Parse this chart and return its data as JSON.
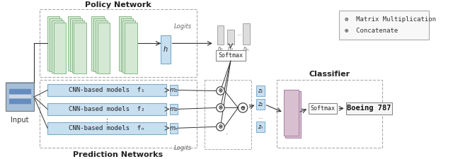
{
  "bg_color": "#ffffff",
  "policy_network_label": "Policy Network",
  "prediction_networks_label": "Prediction Networks",
  "classifier_label": "Classifier",
  "input_label": "Input",
  "logits_label_top": "Logits",
  "logits_label_bottom": "Logits",
  "softmax_label": "Softmax",
  "softmax2_label": "Softmax",
  "boeing_label": "Boeing 787",
  "cnn_labels": [
    "CNN-based models  f₁",
    "CNN-based models  f₂",
    "CNN-based models  fₙ"
  ],
  "dots_label": "⋮",
  "h_label": "h",
  "m_labels": [
    "m₁",
    "m₂",
    "mₙ"
  ],
  "z_labels": [
    "z₁",
    "z₂",
    "zₙ"
  ],
  "legend_mm": "⊗  Matrix Multiplication",
  "legend_concat": "⊕  Concatenate",
  "cnn_color": "#d4e8d4",
  "cnn_edge": "#8aba8a",
  "cnn_box_color": "#c8dff0",
  "cnn_box_edge": "#7aaac8",
  "softmax_color": "#ffffff",
  "softmax_edge": "#888888",
  "classifier_color": "#d8c0d0",
  "classifier_edge": "#aa88aa",
  "z_color": "#c8dff0",
  "z_edge": "#7aaac8",
  "m_color": "#c8dff0",
  "m_edge": "#7aaac8",
  "h_color": "#c8dff0",
  "h_edge": "#7aaac8",
  "legend_box_color": "#f8f8f8",
  "legend_box_edge": "#aaaaaa",
  "line_color": "#333333",
  "dashed_box_color": "#aaaaaa"
}
